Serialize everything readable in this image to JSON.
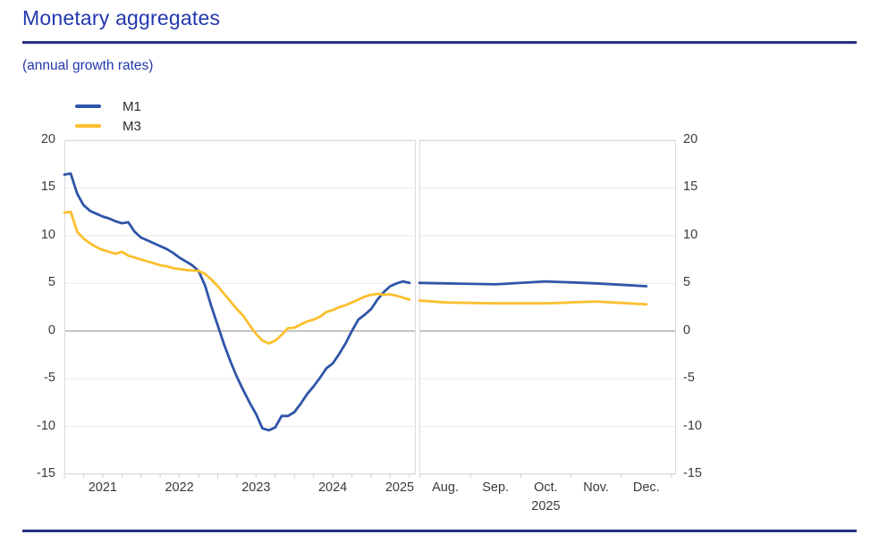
{
  "header": {
    "title": "Monetary aggregates",
    "subtitle": "(annual growth rates)"
  },
  "colors": {
    "title_blue": "#2438ae",
    "rule_navy": "#27317f",
    "m1_blue": "#2f55a8",
    "m3_yellow": "#fcbf2e",
    "grid": "#e9e9e9",
    "zero_line": "#a9a9a9",
    "panel_border": "#d9d9d9",
    "tick_mark": "#cfcfcf",
    "axis_text": "#3a3a3a"
  },
  "chart_data": {
    "type": "line",
    "title": "Monetary aggregates",
    "subtitle": "(annual growth rates)",
    "ylim": [
      -15,
      20
    ],
    "y_ticks": [
      20,
      15,
      10,
      5,
      0,
      -5,
      -10,
      -15
    ],
    "grid": true,
    "legend_position": "top-left",
    "legend": [
      "M1",
      "M3"
    ],
    "panels": [
      {
        "name": "history-monthly",
        "x_tick_labels": [
          "2021",
          "2022",
          "2023",
          "2024",
          "2025"
        ],
        "x_range_note": "monthly values, Jan 2021 - Jul 2025",
        "series": [
          {
            "name": "M1",
            "color_key": "m1_blue",
            "values": [
              16.4,
              16.5,
              14.4,
              13.2,
              12.6,
              12.3,
              12.0,
              11.8,
              11.5,
              11.3,
              11.4,
              10.4,
              9.8,
              9.5,
              9.2,
              8.9,
              8.6,
              8.2,
              7.7,
              7.3,
              6.9,
              6.3,
              4.8,
              2.6,
              0.6,
              -1.4,
              -3.2,
              -4.8,
              -6.2,
              -7.5,
              -8.7,
              -10.2,
              -10.4,
              -10.1,
              -8.9,
              -8.9,
              -8.5,
              -7.6,
              -6.6,
              -5.8,
              -4.9,
              -3.9,
              -3.4,
              -2.4,
              -1.3,
              0.0,
              1.2,
              1.7,
              2.3,
              3.3,
              4.1,
              4.7,
              5.0,
              5.2,
              5.05
            ]
          },
          {
            "name": "M3",
            "color_key": "m3_yellow",
            "values": [
              12.4,
              12.5,
              10.4,
              9.7,
              9.2,
              8.8,
              8.5,
              8.3,
              8.1,
              8.3,
              7.9,
              7.7,
              7.5,
              7.3,
              7.1,
              6.9,
              6.8,
              6.6,
              6.5,
              6.4,
              6.35,
              6.3,
              6.0,
              5.4,
              4.7,
              3.9,
              3.1,
              2.3,
              1.6,
              0.6,
              -0.3,
              -1.0,
              -1.3,
              -1.0,
              -0.4,
              0.3,
              0.35,
              0.7,
              1.0,
              1.2,
              1.5,
              2.0,
              2.2,
              2.5,
              2.7,
              3.0,
              3.3,
              3.6,
              3.8,
              3.9,
              3.8,
              3.85,
              3.7,
              3.5,
              3.3
            ]
          }
        ]
      },
      {
        "name": "recent-months-2025",
        "x_tick_labels": [
          "Aug.",
          "Sep.",
          "Oct.",
          "Nov.",
          "Dec."
        ],
        "x_year_label": "2025",
        "series": [
          {
            "name": "M1",
            "color_key": "m1_blue",
            "edge_value": 5.05,
            "values": [
              5.0,
              4.9,
              5.2,
              5.0,
              4.7
            ]
          },
          {
            "name": "M3",
            "color_key": "m3_yellow",
            "edge_value": 3.2,
            "values": [
              3.0,
              2.9,
              2.9,
              3.1,
              2.8
            ]
          }
        ]
      }
    ]
  }
}
